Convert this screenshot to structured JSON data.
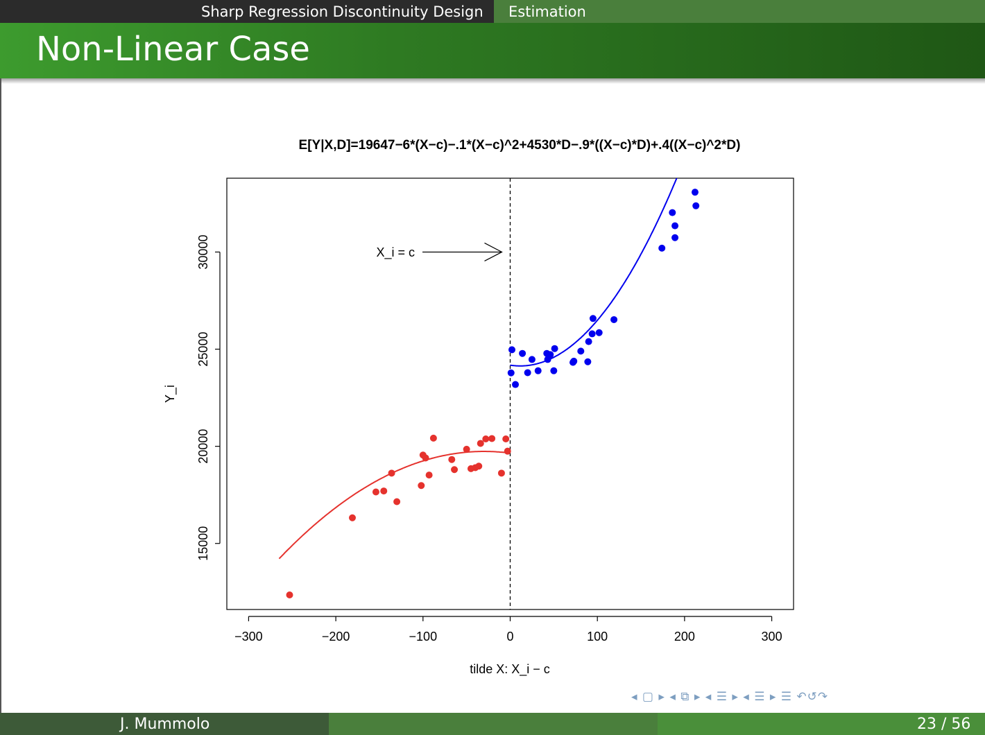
{
  "header": {
    "section": "Sharp Regression Discontinuity Design",
    "subsection": "Estimation"
  },
  "slide": {
    "title": "Non-Linear Case"
  },
  "footer": {
    "author": "J. Mummolo",
    "page": "23 / 56"
  },
  "nav_symbols": "◂ ▢ ▸ ◂ ⧉ ▸ ◂ ☰ ▸ ◂ ☰ ▸ ☰ ↶↺↷",
  "colors": {
    "control": "#e5322d",
    "treated": "#0000ee",
    "accent": "#4a7f3c"
  },
  "chart_data": {
    "type": "scatter",
    "title": "E[Y|X,D]=19647−6*(X−c)−.1*(X−c)^2+4530*D−.9*((X−c)*D)+.4((X−c)^2*D)",
    "xlabel": "tilde X: X_i − c",
    "ylabel": "Y_i",
    "xlim": [
      -325,
      325
    ],
    "ylim": [
      11600,
      33800
    ],
    "xticks": [
      -300,
      -200,
      -100,
      0,
      100,
      200,
      300
    ],
    "xtick_labels": [
      "−300",
      "−200",
      "−100",
      "0",
      "100",
      "200",
      "300"
    ],
    "yticks": [
      15000,
      20000,
      25000,
      30000
    ],
    "ytick_labels": [
      "15000",
      "20000",
      "25000",
      "30000"
    ],
    "cutoff": 0,
    "annotation": {
      "text": "X_i = c",
      "y": 30000
    },
    "grid": false,
    "series": [
      {
        "color": "#e5322d",
        "points": [
          [
            -253,
            12350
          ],
          [
            -181,
            16320
          ],
          [
            -154,
            17650
          ],
          [
            -145,
            17700
          ],
          [
            -136,
            18620
          ],
          [
            -130,
            17150
          ],
          [
            -102,
            17980
          ],
          [
            -100,
            19550
          ],
          [
            -97,
            19400
          ],
          [
            -93,
            18520
          ],
          [
            -88,
            20420
          ],
          [
            -67,
            19320
          ],
          [
            -64,
            18800
          ],
          [
            -50,
            19850
          ],
          [
            -45,
            18850
          ],
          [
            -40,
            18900
          ],
          [
            -36,
            18980
          ],
          [
            -34,
            20150
          ],
          [
            -28,
            20380
          ],
          [
            -21,
            20400
          ],
          [
            -10,
            18620
          ],
          [
            -5,
            20380
          ],
          [
            -3,
            19750
          ]
        ],
        "fit": {
          "intercept": 19647,
          "linear": -6,
          "quadratic": -0.1,
          "domain": [
            -265,
            0
          ]
        }
      },
      {
        "color": "#0000ee",
        "points": [
          [
            1,
            23780
          ],
          [
            2,
            24970
          ],
          [
            6,
            23180
          ],
          [
            14,
            24780
          ],
          [
            20,
            23790
          ],
          [
            25,
            24470
          ],
          [
            32,
            23890
          ],
          [
            42,
            24780
          ],
          [
            43,
            24470
          ],
          [
            46,
            24720
          ],
          [
            50,
            23890
          ],
          [
            51,
            25030
          ],
          [
            72,
            24320
          ],
          [
            73,
            24380
          ],
          [
            81,
            24900
          ],
          [
            89,
            24350
          ],
          [
            90,
            25390
          ],
          [
            94,
            25790
          ],
          [
            95,
            26580
          ],
          [
            102,
            25850
          ],
          [
            119,
            26520
          ],
          [
            174,
            30200
          ],
          [
            186,
            32030
          ],
          [
            189,
            31350
          ],
          [
            189,
            30740
          ],
          [
            212,
            33080
          ],
          [
            213,
            32380
          ]
        ],
        "fit": {
          "intercept": 24177,
          "linear": -6.9,
          "quadratic": 0.3,
          "domain": [
            0,
            222
          ]
        }
      }
    ]
  }
}
